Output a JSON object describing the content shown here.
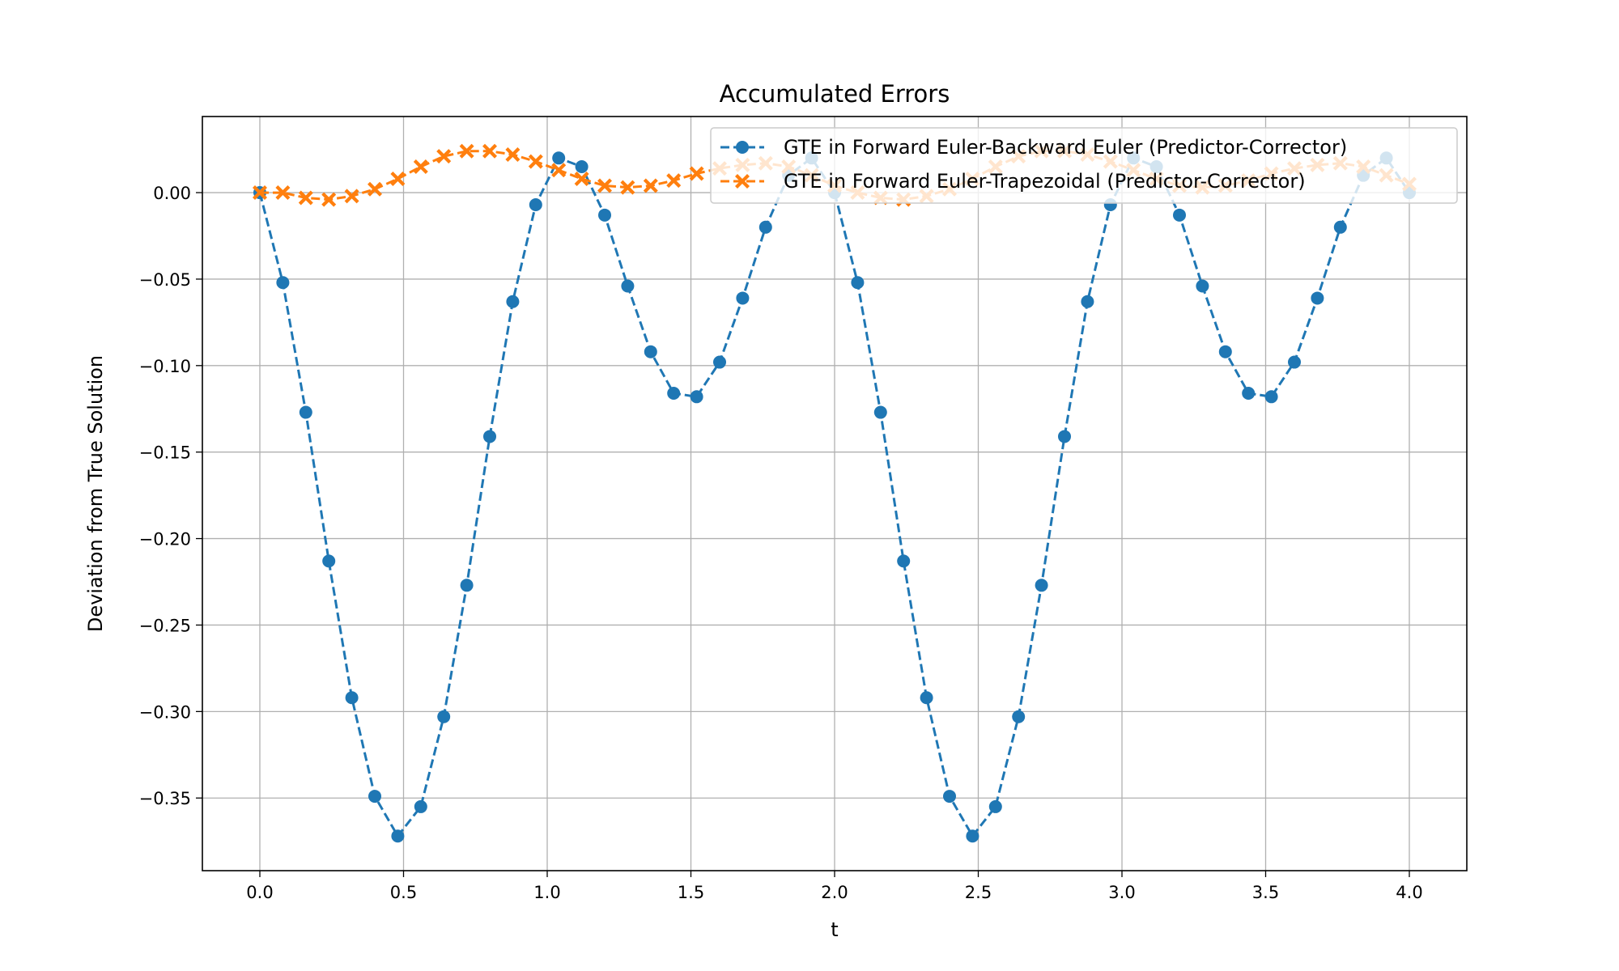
{
  "chart_data": {
    "type": "line",
    "title": "Accumulated Errors",
    "xlabel": "t",
    "ylabel": "Deviation from True Solution",
    "xlim": [
      -0.2,
      4.2
    ],
    "ylim": [
      -0.392,
      0.044
    ],
    "xticks": [
      0.0,
      0.5,
      1.0,
      1.5,
      2.0,
      2.5,
      3.0,
      3.5,
      4.0
    ],
    "xtick_labels": [
      "0.0",
      "0.5",
      "1.0",
      "1.5",
      "2.0",
      "2.5",
      "3.0",
      "3.5",
      "4.0"
    ],
    "yticks": [
      0.0,
      -0.05,
      -0.1,
      -0.15,
      -0.2,
      -0.25,
      -0.3,
      -0.35
    ],
    "ytick_labels": [
      "0.00",
      "−0.05",
      "−0.10",
      "−0.15",
      "−0.20",
      "−0.25",
      "−0.30",
      "−0.35"
    ],
    "grid": true,
    "legend_position": "top-right",
    "x": [
      0.0,
      0.08,
      0.16,
      0.24,
      0.32,
      0.4,
      0.48,
      0.56,
      0.64,
      0.72,
      0.8,
      0.88,
      0.96,
      1.04,
      1.12,
      1.2,
      1.28,
      1.36,
      1.44,
      1.52,
      1.6,
      1.68,
      1.76,
      1.84,
      1.92,
      2.0,
      2.08,
      2.16,
      2.24,
      2.32,
      2.4,
      2.48,
      2.56,
      2.64,
      2.72,
      2.8,
      2.88,
      2.96,
      3.04,
      3.12,
      3.2,
      3.28,
      3.36,
      3.44,
      3.52,
      3.6,
      3.68,
      3.76,
      3.84,
      3.92,
      4.0
    ],
    "series": [
      {
        "name": "GTE in Forward Euler-Backward Euler (Predictor-Corrector)",
        "color": "#1f77b4",
        "marker": "circle",
        "linestyle": "dashed",
        "values": [
          0.0,
          -0.052,
          -0.127,
          -0.213,
          -0.292,
          -0.349,
          -0.372,
          -0.355,
          -0.303,
          -0.227,
          -0.141,
          -0.063,
          -0.007,
          0.02,
          0.015,
          -0.013,
          -0.054,
          -0.092,
          -0.116,
          -0.118,
          -0.098,
          -0.061,
          -0.02,
          0.01,
          0.02,
          0.0,
          -0.052,
          -0.127,
          -0.213,
          -0.292,
          -0.349,
          -0.372,
          -0.355,
          -0.303,
          -0.227,
          -0.141,
          -0.063,
          -0.007,
          0.02,
          0.015,
          -0.013,
          -0.054,
          -0.092,
          -0.116,
          -0.118,
          -0.098,
          -0.061,
          -0.02,
          0.01,
          0.02,
          0.0
        ]
      },
      {
        "name": "GTE in Forward Euler-Trapezoidal (Predictor-Corrector)",
        "color": "#ff7f0e",
        "marker": "x",
        "linestyle": "dashed",
        "values": [
          0.0,
          0.0,
          -0.003,
          -0.004,
          -0.002,
          0.002,
          0.008,
          0.015,
          0.021,
          0.024,
          0.024,
          0.022,
          0.018,
          0.013,
          0.008,
          0.004,
          0.003,
          0.004,
          0.007,
          0.011,
          0.014,
          0.016,
          0.017,
          0.015,
          0.01,
          0.004,
          0.0,
          -0.003,
          -0.004,
          -0.002,
          0.002,
          0.008,
          0.015,
          0.021,
          0.024,
          0.024,
          0.022,
          0.018,
          0.013,
          0.008,
          0.004,
          0.003,
          0.004,
          0.007,
          0.011,
          0.014,
          0.016,
          0.017,
          0.015,
          0.01,
          0.005
        ]
      }
    ]
  }
}
